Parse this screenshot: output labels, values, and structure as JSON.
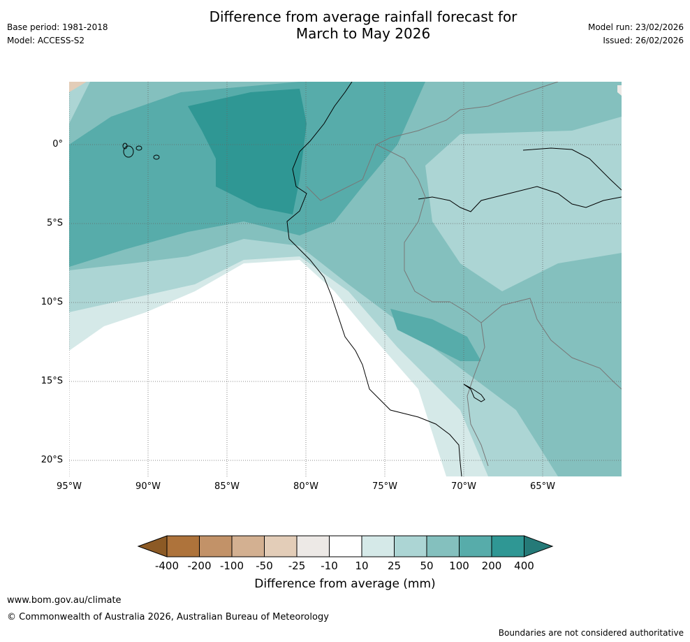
{
  "title": {
    "line1": "Difference from average rainfall forecast for",
    "line2": "March to May 2026"
  },
  "meta_left": {
    "base_period": "Base period: 1981-2018",
    "model": "Model: ACCESS-S2"
  },
  "meta_right": {
    "model_run": "Model run: 23/02/2026",
    "issued": "Issued: 26/02/2026"
  },
  "map": {
    "lat_labels": [
      "0°",
      "5°S",
      "10°S",
      "15°S",
      "20°S"
    ],
    "lon_labels": [
      "95°W",
      "90°W",
      "85°W",
      "80°W",
      "75°W",
      "70°W",
      "65°W"
    ]
  },
  "colorbar": {
    "title": "Difference from average (mm)",
    "labels": [
      "-400",
      "-200",
      "-100",
      "-50",
      "-25",
      "-10",
      "10",
      "25",
      "50",
      "100",
      "200",
      "400"
    ],
    "colors": [
      "#8c5a25",
      "#ae733b",
      "#c29268",
      "#d3b091",
      "#e3cdb8",
      "#ede9e6",
      "#ffffff",
      "#d5e9e8",
      "#acd5d4",
      "#84c0be",
      "#57acaa",
      "#2f9794",
      "#257a78"
    ]
  },
  "footer": {
    "website": "www.bom.gov.au/climate",
    "copyright": "© Commonwealth of Australia 2026, Australian Bureau of Meteorology",
    "disclaimer": "Boundaries are not considered authoritative"
  }
}
